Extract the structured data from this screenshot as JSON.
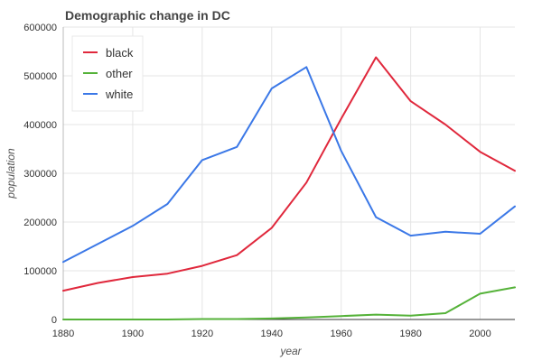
{
  "chart_data": {
    "type": "line",
    "title": "Demographic change in DC",
    "xlabel": "year",
    "ylabel": "population",
    "x": [
      1880,
      1890,
      1900,
      1910,
      1920,
      1930,
      1940,
      1950,
      1960,
      1970,
      1980,
      1990,
      2000,
      2010
    ],
    "xlim": [
      1880,
      2010
    ],
    "ylim": [
      0,
      600000
    ],
    "xticks": [
      1880,
      1900,
      1920,
      1940,
      1960,
      1980,
      2000
    ],
    "yticks": [
      0,
      100000,
      200000,
      300000,
      400000,
      500000,
      600000
    ],
    "grid": true,
    "legend_position": "top-left",
    "series": [
      {
        "name": "black",
        "color": "#e0283c",
        "values": [
          59000,
          75000,
          87000,
          94000,
          110000,
          132000,
          188000,
          281000,
          412000,
          538000,
          448000,
          400000,
          344000,
          305000
        ]
      },
      {
        "name": "other",
        "color": "#55b239",
        "values": [
          0,
          0,
          0,
          0,
          1000,
          1000,
          2000,
          4000,
          7000,
          10000,
          8000,
          13000,
          53000,
          66000
        ]
      },
      {
        "name": "white",
        "color": "#3b78e7",
        "values": [
          118000,
          155000,
          192000,
          237000,
          327000,
          354000,
          474000,
          518000,
          346000,
          210000,
          172000,
          180000,
          176000,
          232000
        ]
      }
    ]
  }
}
